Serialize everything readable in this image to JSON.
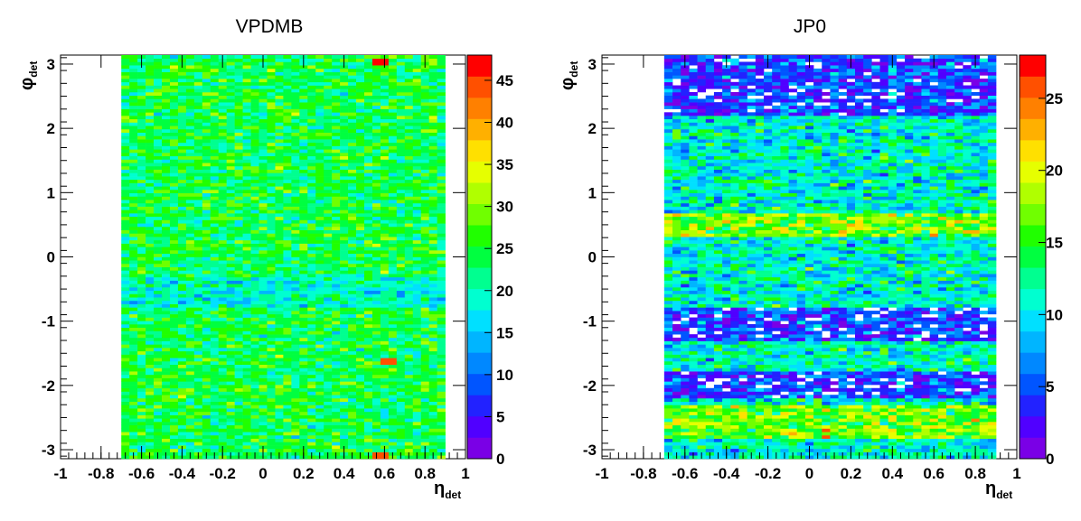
{
  "chart_data": [
    {
      "type": "heatmap",
      "title": "VPDMB",
      "xlabel": {
        "main": "η",
        "sub": "det"
      },
      "ylabel": {
        "main": "φ",
        "sub": "det"
      },
      "xlim": [
        -1,
        1
      ],
      "ylim": [
        -3.14,
        3.14
      ],
      "data_x_range": [
        -0.7,
        0.9
      ],
      "x_ticks": [
        "-1",
        "-0.8",
        "-0.6",
        "-0.4",
        "-0.2",
        "0",
        "0.2",
        "0.4",
        "0.6",
        "0.8",
        "1"
      ],
      "y_ticks": [
        "-3",
        "-2",
        "-1",
        "0",
        "1",
        "2",
        "3"
      ],
      "colorbar": {
        "min": 0,
        "max": 48,
        "ticks": [
          "0",
          "5",
          "10",
          "15",
          "20",
          "25",
          "30",
          "35",
          "40",
          "45"
        ]
      },
      "grid": {
        "x_bins": 40,
        "y_bins": 120
      },
      "value_profile": {
        "mean": 24,
        "spread": 5,
        "low_band_phi": [
          -0.8,
          -0.3
        ],
        "low_band_value": 19,
        "hotspots": [
          {
            "eta": 0.6,
            "phi": 3.05,
            "value": 46
          },
          {
            "eta": 0.62,
            "phi": -1.6,
            "value": 44
          },
          {
            "eta": 0.6,
            "phi": -3.1,
            "value": 45
          }
        ]
      }
    },
    {
      "type": "heatmap",
      "title": "JP0",
      "xlabel": {
        "main": "η",
        "sub": "det"
      },
      "ylabel": {
        "main": "φ",
        "sub": "det"
      },
      "xlim": [
        -1,
        1
      ],
      "ylim": [
        -3.14,
        3.14
      ],
      "data_x_range": [
        -0.7,
        0.9
      ],
      "x_ticks": [
        "-1",
        "-0.8",
        "-0.6",
        "-0.4",
        "-0.2",
        "0",
        "0.2",
        "0.4",
        "0.6",
        "0.8",
        "1"
      ],
      "y_ticks": [
        "-3",
        "-2",
        "-1",
        "0",
        "1",
        "2",
        "3"
      ],
      "colorbar": {
        "min": 0,
        "max": 28,
        "ticks": [
          "0",
          "5",
          "10",
          "15",
          "20",
          "25"
        ]
      },
      "grid": {
        "x_bins": 40,
        "y_bins": 120
      },
      "value_profile": {
        "mean": 11,
        "spread": 4,
        "low_band_phi": [
          [
            2.2,
            3.14
          ],
          [
            -1.3,
            -0.8
          ],
          [
            -2.2,
            -1.8
          ]
        ],
        "low_band_value": 4,
        "high_band_phi": [
          [
            0.3,
            0.7
          ],
          [
            -2.8,
            -2.3
          ]
        ],
        "high_band_value": 17,
        "empty_cells": true
      }
    }
  ]
}
